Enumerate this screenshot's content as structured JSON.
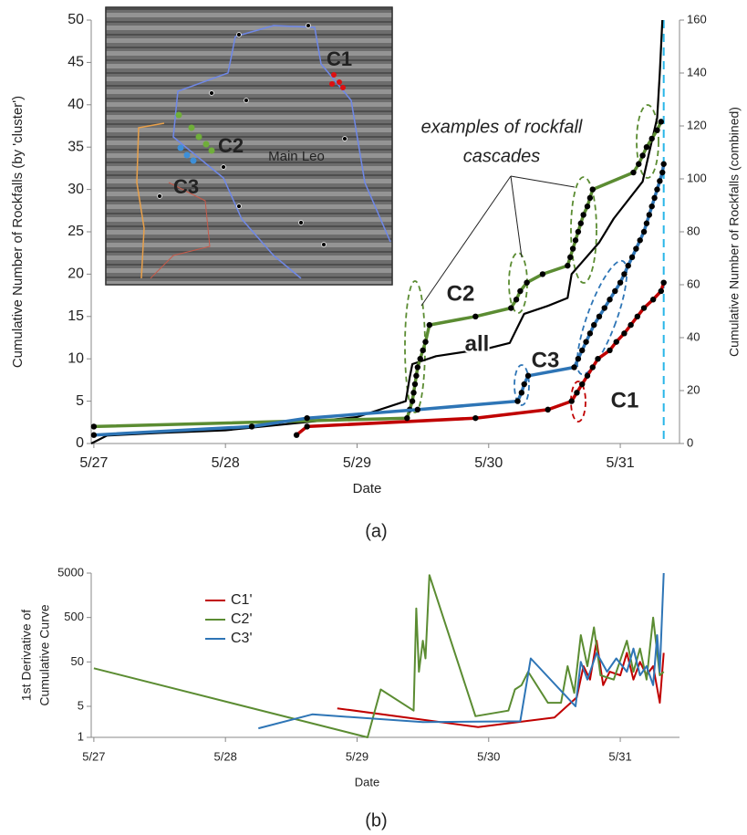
{
  "chart_data": [
    {
      "type": "line",
      "xlabel": "Date",
      "ylabel": "Cumulative Number of Rockfalls (by 'cluster')",
      "y2label": "Cumulative Number of Rockfalls (combined)",
      "panel_label": "(a)",
      "annotation": [
        "examples of rockfall",
        "cascades"
      ],
      "inset_labels": [
        "C1",
        "C2",
        "C3",
        "Main Leo"
      ],
      "xlim": [
        26.98,
        31.45
      ],
      "xticks": [
        {
          "value": 27,
          "label": "5/27"
        },
        {
          "value": 28,
          "label": "5/28"
        },
        {
          "value": 29,
          "label": "5/29"
        },
        {
          "value": 30,
          "label": "5/30"
        },
        {
          "value": 31,
          "label": "5/31"
        }
      ],
      "ylim": [
        0,
        50
      ],
      "yticks": [
        0,
        5,
        10,
        15,
        20,
        25,
        30,
        35,
        40,
        45,
        50
      ],
      "y2lim": [
        0,
        160
      ],
      "y2ticks": [
        0,
        20,
        40,
        60,
        80,
        100,
        120,
        140,
        160
      ],
      "marker_color": "#000000",
      "vline": {
        "x": 31.33,
        "color": "#29b6e8"
      },
      "series": [
        {
          "name": "C1",
          "color": "#c00000",
          "markers": true,
          "x": [
            28.54,
            28.62,
            29.9,
            30.45,
            30.63,
            30.67,
            30.71,
            30.75,
            30.79,
            30.83,
            30.92,
            30.97,
            31.03,
            31.08,
            31.13,
            31.18,
            31.25,
            31.31,
            31.33
          ],
          "values": [
            1,
            2,
            3,
            4,
            5,
            6,
            7,
            8,
            9,
            10,
            11,
            12,
            13,
            14,
            15,
            16,
            17,
            18,
            19
          ]
        },
        {
          "name": "C2",
          "color": "#5b8c32",
          "markers": true,
          "x": [
            27.0,
            29.38,
            29.4,
            29.42,
            29.43,
            29.44,
            29.45,
            29.46,
            29.48,
            29.5,
            29.52,
            29.55,
            29.9,
            30.17,
            30.21,
            30.24,
            30.29,
            30.41,
            30.6,
            30.62,
            30.64,
            30.66,
            30.68,
            30.7,
            30.72,
            30.75,
            30.77,
            30.79,
            31.1,
            31.14,
            31.17,
            31.2,
            31.24,
            31.28,
            31.31
          ],
          "values": [
            2,
            3,
            4,
            5,
            6,
            7,
            8,
            9,
            10,
            11,
            12,
            14,
            15,
            16,
            17,
            18,
            19,
            20,
            21,
            22,
            23,
            24,
            25,
            26,
            27,
            28,
            29,
            30,
            32,
            33,
            34,
            35,
            36,
            37,
            38
          ]
        },
        {
          "name": "C3",
          "color": "#2e75b6",
          "markers": true,
          "x": [
            27.0,
            28.2,
            28.62,
            29.46,
            30.22,
            30.25,
            30.27,
            30.3,
            30.65,
            30.68,
            30.71,
            30.74,
            30.77,
            30.8,
            30.84,
            30.88,
            30.92,
            30.96,
            31.0,
            31.03,
            31.06,
            31.09,
            31.12,
            31.15,
            31.18,
            31.2,
            31.22,
            31.24,
            31.26,
            31.28,
            31.3,
            31.32,
            31.33
          ],
          "values": [
            1,
            2,
            3,
            4,
            5,
            6,
            7,
            8,
            9,
            10,
            11,
            12,
            13,
            14,
            15,
            16,
            17,
            18,
            19,
            20,
            21,
            22,
            23,
            24,
            25,
            26,
            27,
            28,
            29,
            30,
            31,
            32,
            33
          ]
        },
        {
          "name": "all",
          "color": "#000000",
          "markers": false,
          "axis": "y2",
          "x": [
            26.98,
            27.1,
            27.5,
            28.0,
            28.6,
            29.0,
            29.37,
            29.4,
            29.42,
            29.6,
            30.0,
            30.16,
            30.22,
            30.27,
            30.45,
            30.6,
            30.63,
            30.84,
            30.95,
            31.17,
            31.22,
            31.28,
            31.3,
            31.32
          ],
          "values": [
            0,
            3,
            4,
            5,
            8,
            10,
            16,
            25,
            30,
            33,
            36,
            38,
            44,
            49,
            52,
            55,
            64,
            76,
            85,
            99,
            110,
            123,
            140,
            160
          ]
        }
      ]
    },
    {
      "type": "line",
      "xlabel": "Date",
      "ylabel": [
        "1st Derivative of",
        "Cumulative Curve"
      ],
      "panel_label": "(b)",
      "log_y": true,
      "legend": "upper-left",
      "xlim": [
        26.98,
        31.45
      ],
      "xticks": [
        {
          "value": 27,
          "label": "5/27"
        },
        {
          "value": 28,
          "label": "5/28"
        },
        {
          "value": 29,
          "label": "5/29"
        },
        {
          "value": 30,
          "label": "5/30"
        },
        {
          "value": 31,
          "label": "5/31"
        }
      ],
      "ylim": [
        1,
        5000
      ],
      "yticks": [
        1,
        5,
        50,
        500,
        5000
      ],
      "series": [
        {
          "name": "C1'",
          "color": "#c00000",
          "x": [
            28.85,
            29.92,
            30.5,
            30.67,
            30.72,
            30.77,
            30.82,
            30.87,
            30.92,
            31.0,
            31.05,
            31.1,
            31.15,
            31.2,
            31.25,
            31.3,
            31.33
          ],
          "values": [
            4.5,
            1.7,
            2.8,
            8,
            40,
            20,
            150,
            15,
            30,
            25,
            80,
            20,
            50,
            25,
            40,
            6,
            80
          ]
        },
        {
          "name": "C2'",
          "color": "#5b8c32",
          "x": [
            27.0,
            29.08,
            29.18,
            29.43,
            29.45,
            29.47,
            29.5,
            29.52,
            29.55,
            29.9,
            30.15,
            30.2,
            30.25,
            30.3,
            30.45,
            30.55,
            30.6,
            30.65,
            30.7,
            30.75,
            30.8,
            30.85,
            30.95,
            31.05,
            31.1,
            31.15,
            31.2,
            31.25,
            31.3,
            31.33
          ],
          "values": [
            36,
            1,
            12,
            4,
            800,
            30,
            150,
            60,
            4500,
            3,
            4,
            12,
            15,
            30,
            6,
            6,
            40,
            10,
            200,
            40,
            300,
            25,
            20,
            150,
            30,
            100,
            20,
            500,
            25,
            30
          ]
        },
        {
          "name": "C3'",
          "color": "#2e75b6",
          "x": [
            28.25,
            28.66,
            29.5,
            30.24,
            30.32,
            30.66,
            30.7,
            30.75,
            30.82,
            30.9,
            30.97,
            31.05,
            31.1,
            31.15,
            31.2,
            31.25,
            31.28,
            31.3,
            31.33
          ],
          "values": [
            1.6,
            3.3,
            2.2,
            2.3,
            60,
            5,
            50,
            20,
            80,
            30,
            60,
            30,
            100,
            25,
            40,
            15,
            200,
            30,
            5000
          ]
        }
      ]
    }
  ]
}
